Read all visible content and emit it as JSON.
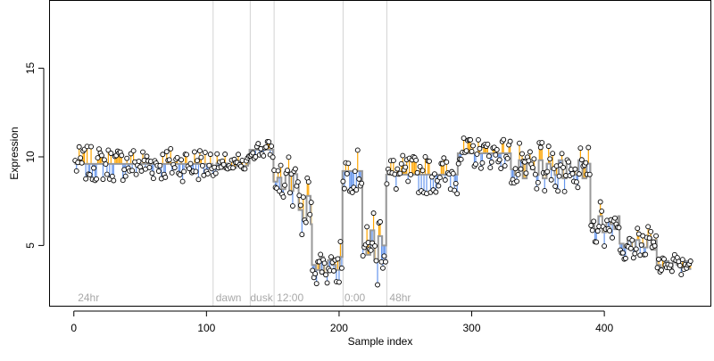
{
  "chart_data": {
    "type": "line",
    "xlabel": "Sample index",
    "ylabel": "Expression",
    "xlim": [
      -18,
      480
    ],
    "ylim": [
      1.6,
      18.8
    ],
    "x_ticks": [
      0,
      100,
      200,
      300,
      400
    ],
    "y_ticks": [
      5,
      10,
      15
    ],
    "grid": false,
    "region_dividers": [
      105,
      133,
      151,
      203,
      236
    ],
    "region_labels": [
      {
        "x": 3,
        "label": "24hr"
      },
      {
        "x": 107,
        "label": "dawn"
      },
      {
        "x": 133,
        "label": "dusk"
      },
      {
        "x": 153,
        "label": "12:00"
      },
      {
        "x": 204,
        "label": "0:00"
      },
      {
        "x": 238,
        "label": "48hr"
      }
    ],
    "colors": {
      "observed": "#000000",
      "fitted": "#999999",
      "residual_positive": "#ffa500",
      "residual_negative": "#6495ed",
      "divider": "#d3d3d3",
      "region_label": "#a8a8a8"
    },
    "segments": [
      {
        "x0": 1,
        "x1": 105,
        "level": 9.6,
        "wave_amplitude": 0.9,
        "wave_period": 6
      },
      {
        "x0": 105,
        "x1": 133,
        "level": 9.5,
        "wave_amplitude": 0.3,
        "wave_period": 8
      },
      {
        "x0": 133,
        "x1": 151,
        "level": 10.4,
        "wave_amplitude": 0.3,
        "wave_period": 6
      },
      {
        "x0": 151,
        "x1": 170,
        "level": 8.6,
        "wave_amplitude": 0.9,
        "wave_period": 7
      },
      {
        "x0": 170,
        "x1": 180,
        "level": 7.0,
        "wave_amplitude": 1.4,
        "wave_period": 5
      },
      {
        "x0": 180,
        "x1": 203,
        "level": 3.9,
        "wave_amplitude": 0.8,
        "wave_period": 5
      },
      {
        "x0": 203,
        "x1": 218,
        "level": 9.2,
        "wave_amplitude": 1.1,
        "wave_period": 6
      },
      {
        "x0": 218,
        "x1": 236,
        "level": 5.0,
        "wave_amplitude": 1.5,
        "wave_period": 5
      },
      {
        "x0": 236,
        "x1": 290,
        "level": 9.0,
        "wave_amplitude": 1.0,
        "wave_period": 6
      },
      {
        "x0": 290,
        "x1": 330,
        "level": 10.2,
        "wave_amplitude": 0.8,
        "wave_period": 6
      },
      {
        "x0": 330,
        "x1": 390,
        "level": 9.3,
        "wave_amplitude": 0.9,
        "wave_period": 5
      },
      {
        "x0": 390,
        "x1": 412,
        "level": 6.2,
        "wave_amplitude": 0.8,
        "wave_period": 5
      },
      {
        "x0": 412,
        "x1": 440,
        "level": 5.1,
        "wave_amplitude": 0.6,
        "wave_period": 5
      },
      {
        "x0": 440,
        "x1": 466,
        "level": 3.9,
        "wave_amplitude": 0.4,
        "wave_period": 5
      }
    ]
  }
}
